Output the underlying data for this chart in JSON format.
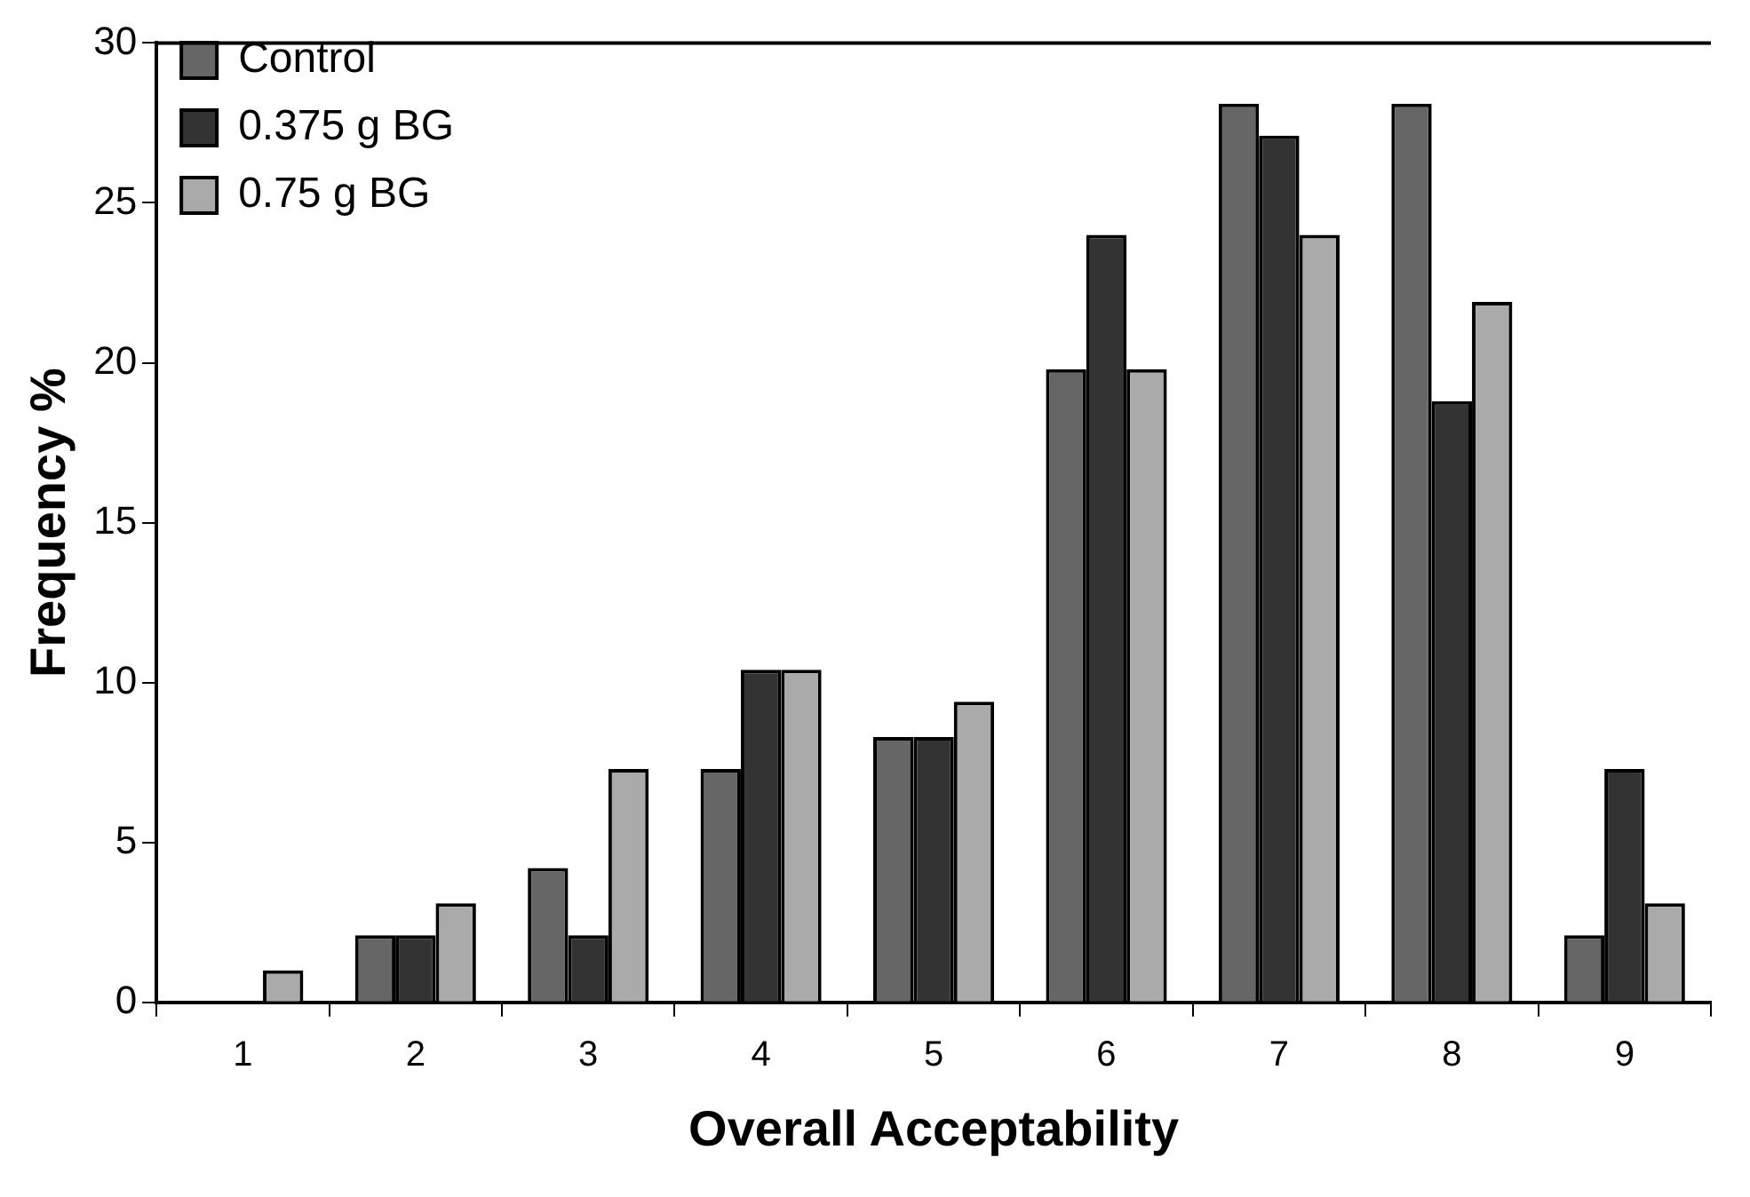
{
  "chart_data": {
    "type": "bar",
    "xlabel": "Overall Acceptability",
    "ylabel": "Frequency %",
    "categories": [
      "1",
      "2",
      "3",
      "4",
      "5",
      "6",
      "7",
      "8",
      "9"
    ],
    "series": [
      {
        "name": "Control",
        "color": "#666666",
        "values": [
          0,
          2.1,
          4.2,
          7.3,
          8.3,
          19.8,
          28.1,
          28.1,
          2.1
        ]
      },
      {
        "name": "0.375 g BG",
        "color": "#333333",
        "values": [
          0,
          2.1,
          2.1,
          10.4,
          8.3,
          24.0,
          27.1,
          18.8,
          7.3
        ]
      },
      {
        "name": "0.75 g BG",
        "color": "#aaaaaa",
        "values": [
          1.0,
          3.1,
          7.3,
          10.4,
          9.4,
          19.8,
          24.0,
          21.9,
          3.1
        ]
      }
    ],
    "ylim": [
      0,
      30
    ],
    "yticks": [
      0,
      5,
      10,
      15,
      20,
      25,
      30
    ],
    "grid": false,
    "legend": "top left"
  }
}
